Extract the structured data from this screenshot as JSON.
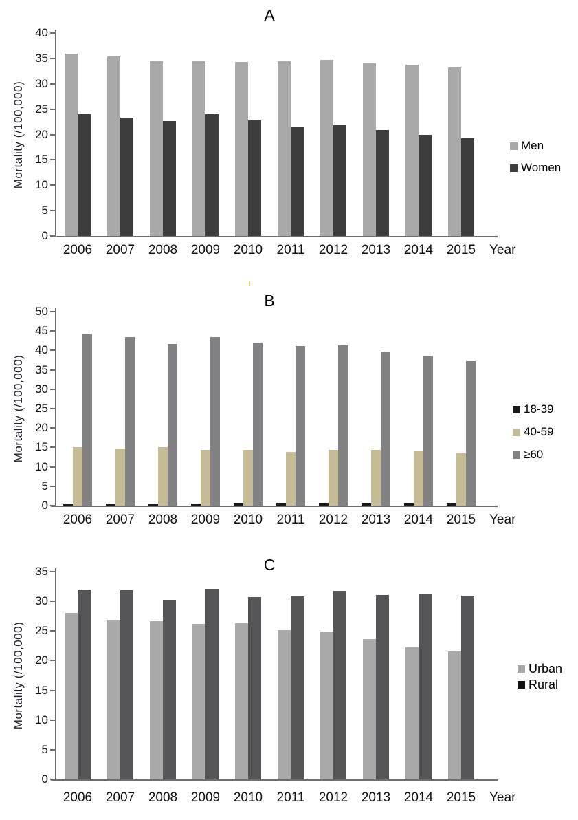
{
  "chart_data": [
    {
      "id": "A",
      "type": "bar",
      "title": "A",
      "ylabel": "Mortality (/100,000)",
      "xlabel": "Year",
      "ylim": [
        0,
        40
      ],
      "ytick_step": 5,
      "grid": false,
      "legend_position": "right",
      "categories": [
        "2006",
        "2007",
        "2008",
        "2009",
        "2010",
        "2011",
        "2012",
        "2013",
        "2014",
        "2015"
      ],
      "series": [
        {
          "name": "Men",
          "color": "#a9a9a9",
          "values": [
            36.0,
            35.4,
            34.4,
            34.4,
            34.3,
            34.4,
            34.7,
            34.0,
            33.7,
            33.2
          ]
        },
        {
          "name": "Women",
          "color": "#3d3d3d",
          "values": [
            24.0,
            23.3,
            22.6,
            24.0,
            22.8,
            21.5,
            21.8,
            20.9,
            19.9,
            19.2
          ]
        }
      ]
    },
    {
      "id": "B",
      "type": "bar",
      "title": "B",
      "ylabel": "Mortality (/100,000)",
      "xlabel": "Year",
      "ylim": [
        0,
        50
      ],
      "ytick_step": 5,
      "grid": false,
      "legend_position": "right",
      "categories": [
        "2006",
        "2007",
        "2008",
        "2009",
        "2010",
        "2011",
        "2012",
        "2013",
        "2014",
        "2015"
      ],
      "series": [
        {
          "name": "18-39",
          "color": "#1a1a1a",
          "values": [
            0.5,
            0.5,
            0.5,
            0.5,
            0.8,
            0.8,
            0.8,
            0.8,
            0.8,
            0.8
          ]
        },
        {
          "name": "40-59",
          "color": "#c5bc95",
          "values": [
            15.1,
            14.8,
            15.0,
            14.3,
            14.3,
            13.9,
            14.4,
            14.4,
            14.0,
            13.7
          ]
        },
        {
          "name": "≥60",
          "color": "#828285",
          "values": [
            44.2,
            43.4,
            41.6,
            43.5,
            42.1,
            41.2,
            41.4,
            39.7,
            38.5,
            37.2
          ]
        }
      ]
    },
    {
      "id": "C",
      "type": "bar",
      "title": "C",
      "ylabel": "Mortality (/100,000)",
      "xlabel": "Year",
      "ylim": [
        0,
        35
      ],
      "ytick_step": 5,
      "grid": false,
      "legend_position": "right",
      "categories": [
        "2006",
        "2007",
        "2008",
        "2009",
        "2010",
        "2011",
        "2012",
        "2013",
        "2014",
        "2015"
      ],
      "series": [
        {
          "name": "Urban",
          "color": "#a9a9a9",
          "values": [
            28.0,
            26.9,
            26.7,
            26.2,
            26.3,
            25.1,
            24.9,
            23.7,
            22.3,
            21.6
          ]
        },
        {
          "name": "Rural",
          "color": "#555557",
          "legend_color": "#121212",
          "values": [
            32.0,
            31.9,
            30.2,
            32.1,
            30.7,
            30.8,
            31.8,
            31.1,
            31.2,
            31.0
          ]
        }
      ]
    }
  ]
}
